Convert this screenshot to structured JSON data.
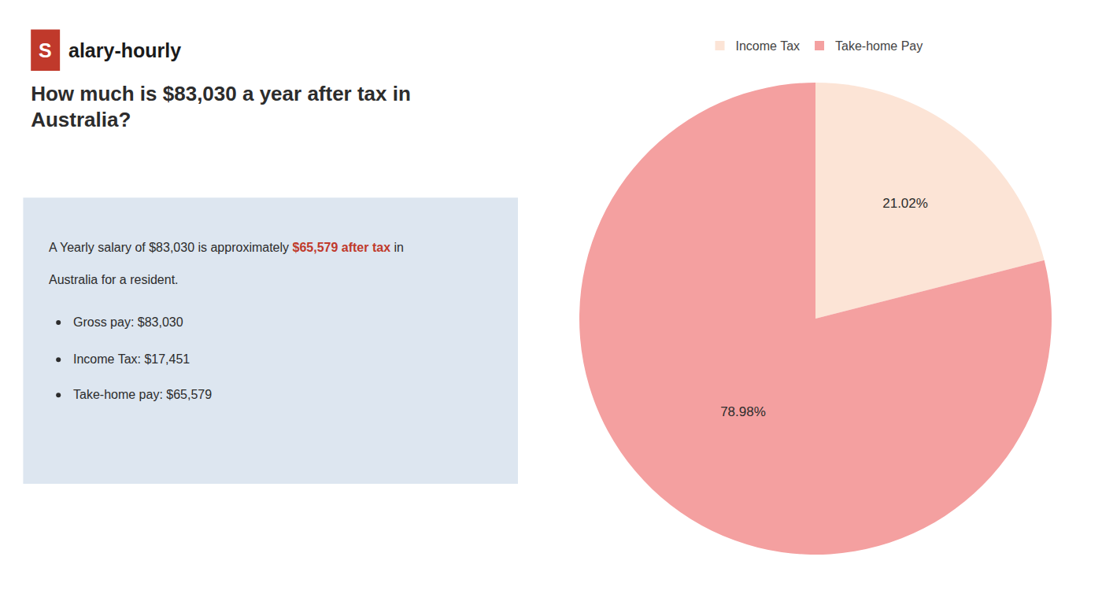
{
  "chart_data": {
    "type": "pie",
    "title": [
      "How much is $83,030 a year after tax in",
      "Australia?"
    ],
    "categories": [
      "Income Tax",
      "Take-home Pay"
    ],
    "values": [
      21.02,
      78.98
    ],
    "value_labels": [
      "21.02%",
      "78.98%"
    ],
    "colors": [
      "#fce4d6",
      "#f4a0a0"
    ],
    "data_labels": true,
    "legend": "top",
    "annotations": {
      "logo": {
        "mark": "S",
        "text": "alary-hourly",
        "color": "#c0392b"
      },
      "box": {
        "color": "#dde6f0",
        "lines": [
          [
            {
              "text": "A Yearly salary of $83,030 is approximately "
            },
            {
              "text": "$65,579 after tax",
              "color": "#c0392b",
              "bold": true
            },
            {
              "text": " in"
            }
          ],
          [
            {
              "text": "Australia for a resident."
            }
          ]
        ],
        "bullets": [
          "Gross pay: $83,030",
          "Income Tax: $17,451",
          "Take-home pay: $65,579"
        ]
      }
    }
  }
}
